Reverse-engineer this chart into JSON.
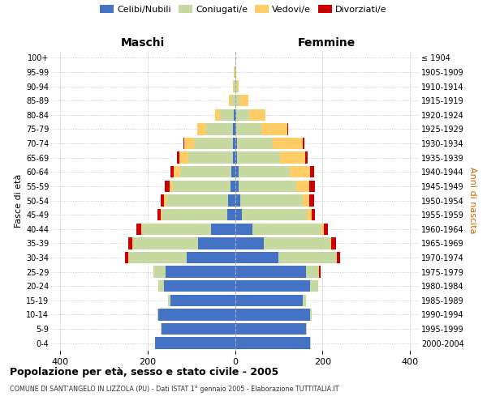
{
  "age_groups": [
    "0-4",
    "5-9",
    "10-14",
    "15-19",
    "20-24",
    "25-29",
    "30-34",
    "35-39",
    "40-44",
    "45-49",
    "50-54",
    "55-59",
    "60-64",
    "65-69",
    "70-74",
    "75-79",
    "80-84",
    "85-89",
    "90-94",
    "95-99",
    "100+"
  ],
  "birth_years": [
    "2000-2004",
    "1995-1999",
    "1990-1994",
    "1985-1989",
    "1980-1984",
    "1975-1979",
    "1970-1974",
    "1965-1969",
    "1960-1964",
    "1955-1959",
    "1950-1954",
    "1945-1949",
    "1940-1944",
    "1935-1939",
    "1930-1934",
    "1925-1929",
    "1920-1924",
    "1915-1919",
    "1910-1914",
    "1905-1909",
    "≤ 1904"
  ],
  "males": {
    "celibi": [
      182,
      168,
      175,
      148,
      162,
      158,
      110,
      85,
      55,
      18,
      15,
      10,
      8,
      5,
      5,
      4,
      2,
      0,
      0,
      0,
      0
    ],
    "coniugati": [
      1,
      2,
      2,
      5,
      14,
      28,
      132,
      148,
      158,
      148,
      142,
      132,
      118,
      102,
      88,
      62,
      32,
      8,
      3,
      1,
      0
    ],
    "vedovi": [
      0,
      0,
      0,
      0,
      0,
      0,
      1,
      1,
      2,
      3,
      5,
      8,
      14,
      20,
      22,
      20,
      12,
      6,
      2,
      1,
      0
    ],
    "divorziati": [
      0,
      0,
      0,
      0,
      0,
      0,
      8,
      10,
      10,
      8,
      8,
      10,
      8,
      5,
      2,
      0,
      0,
      0,
      0,
      0,
      0
    ]
  },
  "females": {
    "nubili": [
      172,
      162,
      172,
      155,
      172,
      162,
      100,
      65,
      40,
      15,
      12,
      8,
      8,
      5,
      5,
      3,
      2,
      0,
      0,
      0,
      0
    ],
    "coniugate": [
      2,
      2,
      3,
      7,
      18,
      28,
      132,
      152,
      158,
      150,
      142,
      132,
      118,
      98,
      82,
      58,
      30,
      10,
      4,
      1,
      0
    ],
    "vedove": [
      0,
      0,
      0,
      0,
      0,
      1,
      1,
      3,
      5,
      10,
      15,
      30,
      46,
      58,
      68,
      58,
      38,
      20,
      5,
      2,
      0
    ],
    "divorziate": [
      0,
      0,
      0,
      0,
      0,
      5,
      8,
      10,
      10,
      8,
      12,
      12,
      8,
      5,
      3,
      2,
      0,
      0,
      0,
      0,
      0
    ]
  },
  "colors": {
    "celibi": "#4472C4",
    "coniugati": "#C5D9A0",
    "vedovi": "#FFCC66",
    "divorziati": "#CC0000"
  },
  "xlim": 420,
  "title": "Popolazione per età, sesso e stato civile - 2005",
  "subtitle": "COMUNE DI SANT'ANGELO IN LIZZOLA (PU) - Dati ISTAT 1° gennaio 2005 - Elaborazione TUTTITALIA.IT",
  "ylabel_left": "Fasce di età",
  "ylabel_right": "Anni di nascita",
  "xlabel_left": "Maschi",
  "xlabel_right": "Femmine",
  "legend_labels": [
    "Celibi/Nubili",
    "Coniugati/e",
    "Vedovi/e",
    "Divorziati/e"
  ],
  "bg_color": "#FFFFFF",
  "anni_color": "#CC6600"
}
